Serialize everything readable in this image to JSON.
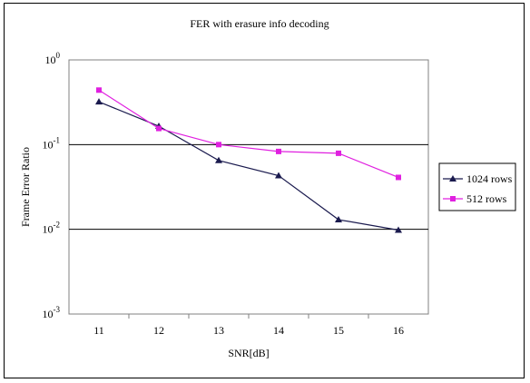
{
  "chart_data": {
    "type": "line",
    "title": "FER with erasure info decoding",
    "xlabel": "SNR[dB]",
    "ylabel": "Frame Error Ratio",
    "x_tick_labels": [
      "11",
      "12",
      "13",
      "14",
      "15",
      "16"
    ],
    "y_scale": "log",
    "y_tick_labels": [
      {
        "base": "10",
        "exp": "0"
      },
      {
        "base": "10",
        "exp": "-1"
      },
      {
        "base": "10",
        "exp": "-2"
      },
      {
        "base": "10",
        "exp": "-3"
      }
    ],
    "ylim": [
      0.001,
      1
    ],
    "grid": "horizontal",
    "legend_position": "right",
    "x": [
      11,
      12,
      13,
      14,
      15,
      16
    ],
    "series": [
      {
        "name": "1024 rows",
        "color": "#1a1a4e",
        "marker": "triangle",
        "values": [
          0.32,
          0.165,
          0.065,
          0.043,
          0.013,
          0.0098
        ]
      },
      {
        "name": "512 rows",
        "color": "#e020e0",
        "marker": "square",
        "values": [
          0.44,
          0.155,
          0.1,
          0.083,
          0.079,
          0.041
        ]
      }
    ]
  }
}
